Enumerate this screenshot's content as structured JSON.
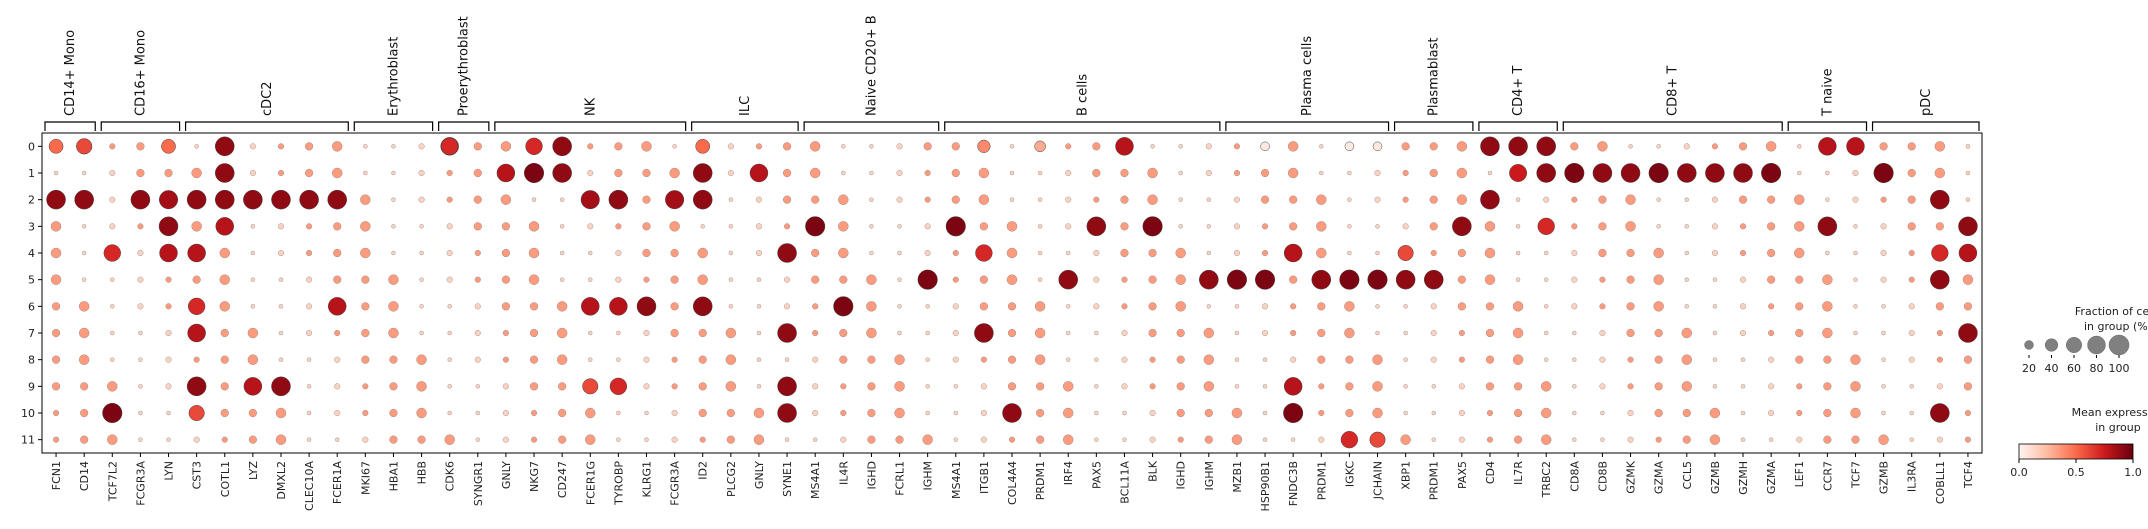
{
  "chart_data": {
    "type": "dotplot",
    "genes": [
      "FCN1",
      "CD14",
      "TCF7L2",
      "FCGR3A",
      "LYN",
      "CST3",
      "COTL1",
      "LYZ",
      "DMXL2",
      "CLEC10A",
      "FCER1A",
      "MKI67",
      "HBA1",
      "HBB",
      "CDK6",
      "SYNGR1",
      "GNLY",
      "NKG7",
      "CD247",
      "FCER1G",
      "TYROBP",
      "KLRG1",
      "FCGR3A",
      "ID2",
      "PLCG2",
      "GNLY",
      "SYNE1",
      "MS4A1",
      "IL4R",
      "IGHD",
      "FCRL1",
      "IGHM",
      "MS4A1",
      "ITGB1",
      "COL4A4",
      "PRDM1",
      "IRF4",
      "PAX5",
      "BCL11A",
      "BLK",
      "IGHD",
      "IGHM",
      "MZB1",
      "HSP90B1",
      "FNDC3B",
      "PRDM1",
      "IGKC",
      "JCHAIN",
      "XBP1",
      "PRDM1",
      "PAX5",
      "CD4",
      "IL7R",
      "TRBC2",
      "CD8A",
      "CD8B",
      "GZMK",
      "GZMA",
      "CCL5",
      "GZMB",
      "GZMH",
      "GZMA",
      "LEF1",
      "CCR7",
      "TCF7",
      "GZMB",
      "IL3RA",
      "COBLL1",
      "TCF4"
    ],
    "groups": [
      {
        "name": "CD14+ Mono",
        "start": 0,
        "end": 1
      },
      {
        "name": "CD16+ Mono",
        "start": 2,
        "end": 4
      },
      {
        "name": "cDC2",
        "start": 5,
        "end": 10
      },
      {
        "name": "Erythroblast",
        "start": 11,
        "end": 13
      },
      {
        "name": "Proerythroblast",
        "start": 14,
        "end": 15
      },
      {
        "name": "NK",
        "start": 16,
        "end": 22
      },
      {
        "name": "ILC",
        "start": 23,
        "end": 26
      },
      {
        "name": "Naive CD20+ B",
        "start": 27,
        "end": 31
      },
      {
        "name": "B cells",
        "start": 32,
        "end": 41
      },
      {
        "name": "Plasma cells",
        "start": 42,
        "end": 47
      },
      {
        "name": "Plasmablast",
        "start": 48,
        "end": 50
      },
      {
        "name": "CD4+ T",
        "start": 51,
        "end": 53
      },
      {
        "name": "CD8+ T",
        "start": 54,
        "end": 61
      },
      {
        "name": "T naive",
        "start": 62,
        "end": 64
      },
      {
        "name": "pDC",
        "start": 65,
        "end": 68
      }
    ],
    "clusters": [
      "0",
      "1",
      "2",
      "3",
      "4",
      "5",
      "6",
      "7",
      "8",
      "9",
      "10",
      "11"
    ],
    "dots": [
      [
        0,
        1,
        2,
        0.6
      ],
      [
        0,
        1,
        9,
        0.6
      ],
      [
        0,
        0,
        2,
        0.5
      ],
      [
        0,
        4,
        2,
        0.4
      ],
      [
        0,
        4,
        9,
        0.5
      ],
      [
        0,
        14,
        0,
        0.8
      ],
      [
        0,
        14,
        2,
        0.7
      ],
      [
        0,
        23,
        0,
        0.4
      ],
      [
        0,
        23,
        2,
        0.5
      ],
      [
        0,
        33,
        0,
        0.4
      ],
      [
        0,
        35,
        0,
        0.3
      ],
      [
        0,
        17,
        1,
        0.7
      ],
      [
        0,
        6,
        0,
        0.9
      ],
      [
        0,
        18,
        0,
        0.9
      ],
      [
        0,
        52,
        0,
        0.9
      ],
      [
        0,
        53,
        0,
        0.9
      ],
      [
        0,
        51,
        0,
        0.9
      ],
      [
        0,
        63,
        0,
        0.8
      ],
      [
        0,
        64,
        0,
        0.8
      ],
      [
        0,
        38,
        1,
        0.8
      ],
      [
        0,
        43,
        0,
        0.05
      ],
      [
        0,
        46,
        0,
        0.05
      ],
      [
        0,
        47,
        0,
        0.05
      ],
      [
        1,
        6,
        1,
        0.9
      ],
      [
        1,
        17,
        1,
        0.95
      ],
      [
        1,
        18,
        1,
        0.9
      ],
      [
        1,
        16,
        1,
        0.8
      ],
      [
        1,
        23,
        1,
        0.9
      ],
      [
        1,
        25,
        1,
        0.8
      ],
      [
        1,
        52,
        1,
        0.75
      ],
      [
        1,
        53,
        1,
        0.9
      ],
      [
        1,
        54,
        1,
        0.95
      ],
      [
        1,
        55,
        1,
        0.9
      ],
      [
        1,
        56,
        1,
        0.9
      ],
      [
        1,
        57,
        1,
        0.95
      ],
      [
        1,
        58,
        1,
        0.9
      ],
      [
        1,
        59,
        1,
        0.9
      ],
      [
        1,
        60,
        1,
        0.9
      ],
      [
        1,
        61,
        1,
        0.95
      ],
      [
        1,
        65,
        1,
        0.95
      ],
      [
        2,
        5,
        2,
        0.9
      ],
      [
        2,
        6,
        2,
        0.9
      ],
      [
        2,
        7,
        2,
        0.9
      ],
      [
        2,
        3,
        2,
        0.9
      ],
      [
        2,
        1,
        2,
        0.9
      ],
      [
        2,
        19,
        2,
        0.85
      ],
      [
        2,
        20,
        2,
        0.9
      ],
      [
        2,
        22,
        2,
        0.85
      ],
      [
        2,
        23,
        2,
        0.9
      ],
      [
        2,
        4,
        2,
        0.85
      ],
      [
        2,
        8,
        2,
        0.9
      ],
      [
        2,
        10,
        2,
        0.9
      ],
      [
        2,
        9,
        2,
        0.9
      ],
      [
        2,
        0,
        2,
        0.9
      ],
      [
        2,
        51,
        2,
        0.9
      ],
      [
        2,
        67,
        2,
        0.9
      ],
      [
        3,
        27,
        3,
        0.95
      ],
      [
        3,
        32,
        3,
        0.95
      ],
      [
        3,
        39,
        3,
        0.95
      ],
      [
        3,
        6,
        3,
        0.8
      ],
      [
        3,
        63,
        3,
        0.9
      ],
      [
        3,
        4,
        3,
        0.9
      ],
      [
        3,
        37,
        3,
        0.9
      ],
      [
        3,
        53,
        3,
        0.7
      ],
      [
        3,
        68,
        3,
        0.9
      ],
      [
        3,
        50,
        3,
        0.9
      ],
      [
        4,
        5,
        4,
        0.8
      ],
      [
        4,
        2,
        4,
        0.7
      ],
      [
        4,
        4,
        4,
        0.8
      ],
      [
        4,
        26,
        4,
        0.9
      ],
      [
        4,
        33,
        4,
        0.7
      ],
      [
        4,
        44,
        4,
        0.8
      ],
      [
        4,
        48,
        4,
        0.6
      ],
      [
        4,
        68,
        4,
        0.8
      ],
      [
        4,
        67,
        4,
        0.7
      ],
      [
        5,
        42,
        5,
        0.95
      ],
      [
        5,
        43,
        5,
        0.95
      ],
      [
        5,
        46,
        5,
        0.95
      ],
      [
        5,
        47,
        5,
        0.95
      ],
      [
        5,
        45,
        5,
        0.9
      ],
      [
        5,
        31,
        5,
        0.95
      ],
      [
        5,
        41,
        5,
        0.9
      ],
      [
        5,
        49,
        5,
        0.9
      ],
      [
        5,
        48,
        5,
        0.9
      ],
      [
        5,
        36,
        5,
        0.9
      ],
      [
        5,
        67,
        5,
        0.9
      ],
      [
        6,
        19,
        6,
        0.8
      ],
      [
        6,
        20,
        6,
        0.8
      ],
      [
        6,
        21,
        6,
        0.9
      ],
      [
        6,
        23,
        6,
        0.9
      ],
      [
        6,
        28,
        6,
        0.95
      ],
      [
        6,
        10,
        6,
        0.8
      ],
      [
        6,
        5,
        6,
        0.7
      ],
      [
        7,
        5,
        7,
        0.8
      ],
      [
        7,
        33,
        7,
        0.9
      ],
      [
        7,
        68,
        7,
        0.9
      ],
      [
        7,
        26,
        7,
        0.9
      ],
      [
        9,
        5,
        9,
        0.9
      ],
      [
        9,
        19,
        9,
        0.6
      ],
      [
        9,
        20,
        9,
        0.7
      ],
      [
        9,
        7,
        9,
        0.8
      ],
      [
        9,
        44,
        9,
        0.8
      ],
      [
        9,
        26,
        9,
        0.9
      ],
      [
        9,
        8,
        9,
        0.9
      ],
      [
        10,
        2,
        10,
        0.95
      ],
      [
        10,
        44,
        10,
        0.95
      ],
      [
        10,
        26,
        10,
        0.9
      ],
      [
        10,
        5,
        10,
        0.6
      ],
      [
        10,
        34,
        10,
        0.9
      ],
      [
        10,
        67,
        10,
        0.9
      ],
      [
        11,
        46,
        11,
        0.7
      ],
      [
        11,
        47,
        11,
        0.6
      ]
    ],
    "legend_size": {
      "title": [
        "Fraction of cells",
        "in group (%)"
      ],
      "values": [
        20,
        40,
        60,
        80,
        100
      ]
    },
    "legend_color": {
      "title": [
        "Mean expression",
        "in group"
      ],
      "ticks": [
        "0.0",
        "0.5",
        "1.0"
      ],
      "colormap": [
        "#fff5f0",
        "#fcbba1",
        "#fb6a4a",
        "#cb181d",
        "#67000d"
      ]
    }
  }
}
